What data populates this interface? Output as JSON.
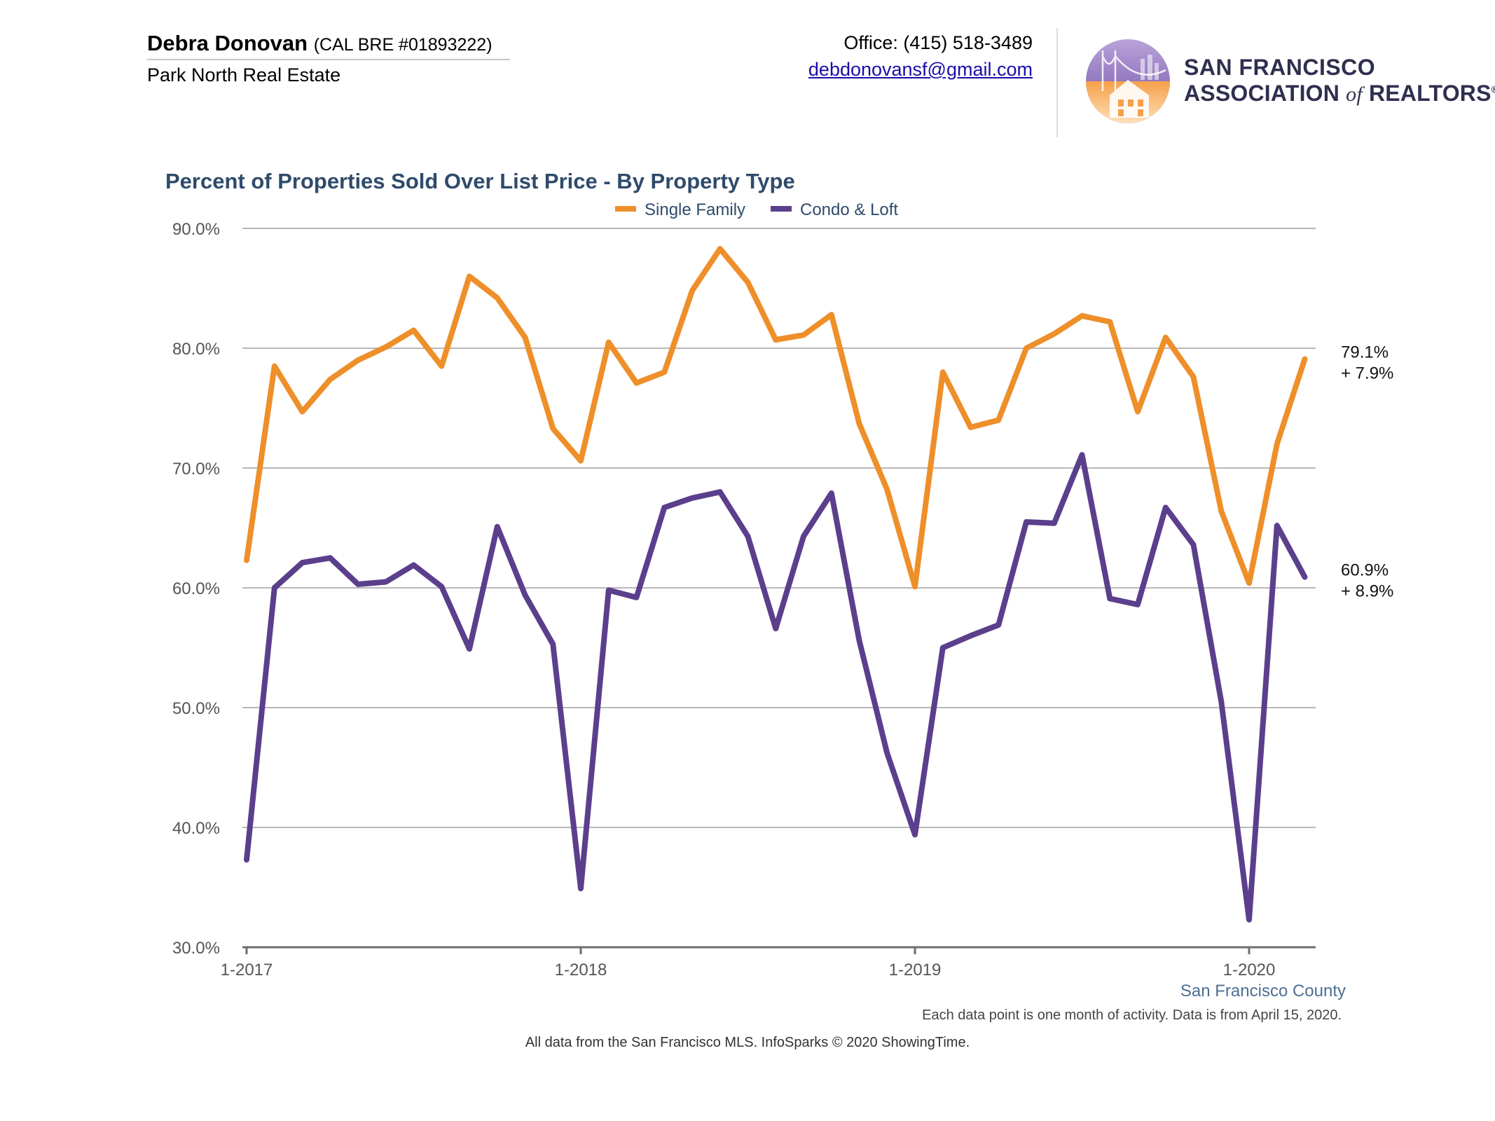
{
  "header": {
    "agent_name": "Debra Donovan",
    "license": "(CAL BRE #01893222)",
    "company": "Park North Real Estate",
    "office": "Office: (415) 518-3489",
    "email": "debdonovansf@gmail.com",
    "logo_line1": "SAN FRANCISCO",
    "logo_line2_a": "ASSOCIATION",
    "logo_line2_b": "of",
    "logo_line2_c": "REALTORS",
    "logo_reg": "®"
  },
  "footer": {
    "region": "San Francisco County",
    "note": "Each data point is one month of activity. Data is from April 15, 2020.",
    "source": "All data from the San Francisco MLS. InfoSparks © 2020 ShowingTime."
  },
  "chart_data": {
    "type": "line",
    "title": "Percent of Properties Sold Over List Price - By Property Type",
    "legend_position": "top",
    "grid": true,
    "ylim": [
      30,
      90
    ],
    "yticks": [
      30,
      40,
      50,
      60,
      70,
      80,
      90
    ],
    "ytick_labels": [
      "30.0%",
      "40.0%",
      "50.0%",
      "60.0%",
      "70.0%",
      "80.0%",
      "90.0%"
    ],
    "xticks": [
      0,
      12,
      24,
      36
    ],
    "xtick_labels": [
      "1-2017",
      "1-2018",
      "1-2019",
      "1-2020"
    ],
    "x_range": [
      0,
      38
    ],
    "series": [
      {
        "name": "Single Family",
        "color": "#ee8f2a",
        "values": [
          62.3,
          78.5,
          74.7,
          77.4,
          79.0,
          80.1,
          81.5,
          78.5,
          86.0,
          84.2,
          80.9,
          73.3,
          70.6,
          80.5,
          77.1,
          78.0,
          84.8,
          88.3,
          85.5,
          80.7,
          81.1,
          82.8,
          73.7,
          68.2,
          60.1,
          78.0,
          73.4,
          74.0,
          80.0,
          81.2,
          82.7,
          82.2,
          74.7,
          80.9,
          77.6,
          66.4,
          60.4,
          72.0,
          79.1
        ],
        "end_label": "79.1%",
        "change_label": "+ 7.9%"
      },
      {
        "name": "Condo & Loft",
        "color": "#5b3f8c",
        "values": [
          37.3,
          60.0,
          62.1,
          62.5,
          60.3,
          60.5,
          61.9,
          60.1,
          54.9,
          65.1,
          59.4,
          55.3,
          34.9,
          59.8,
          59.2,
          66.7,
          67.5,
          68.0,
          64.3,
          56.6,
          64.3,
          67.9,
          55.6,
          46.2,
          39.4,
          55.0,
          56.0,
          56.9,
          65.5,
          65.4,
          71.1,
          59.1,
          58.6,
          66.7,
          63.6,
          50.5,
          32.3,
          65.2,
          60.9
        ],
        "end_label": "60.9%",
        "change_label": "+ 8.9%"
      }
    ]
  }
}
